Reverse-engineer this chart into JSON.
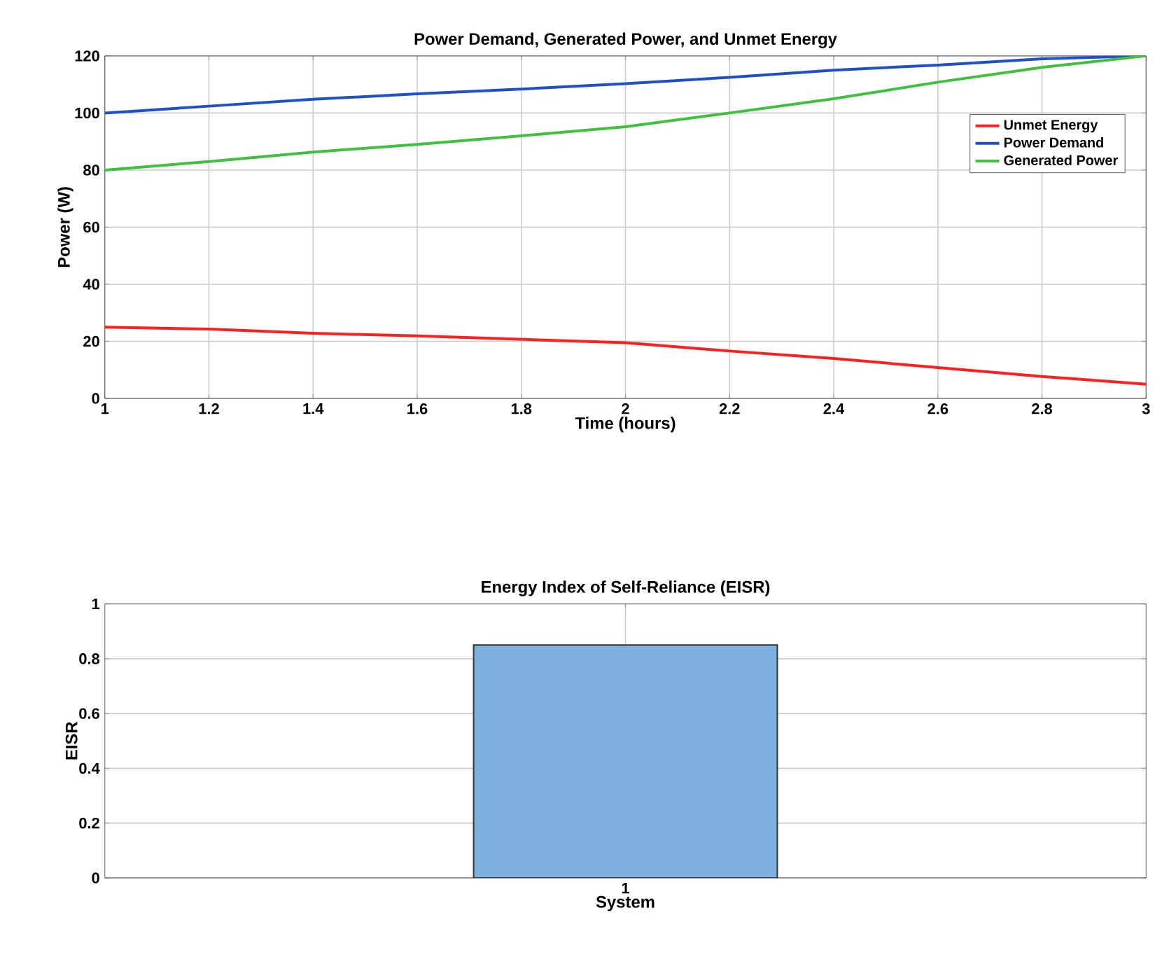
{
  "chart_data": [
    {
      "type": "line",
      "title": "Power Demand, Generated Power, and Unmet Energy",
      "xlabel": "Time (hours)",
      "ylabel": "Power (W)",
      "x": [
        1,
        1.2,
        1.4,
        1.6,
        1.8,
        2,
        2.2,
        2.4,
        2.6,
        2.8,
        3
      ],
      "series": [
        {
          "name": "Unmet Energy",
          "color": "#ff2020",
          "values": [
            25,
            24.3,
            22.8,
            21.9,
            20.7,
            19.5,
            16.6,
            14,
            10.8,
            7.7,
            5
          ]
        },
        {
          "name": "Power Demand",
          "color": "#2050c8",
          "values": [
            100,
            102.4,
            104.8,
            106.7,
            108.4,
            110.3,
            112.5,
            115,
            116.8,
            119,
            120
          ]
        },
        {
          "name": "Generated Power",
          "color": "#40c040",
          "values": [
            80,
            83,
            86.3,
            89,
            92,
            95.2,
            100,
            105,
            110.8,
            116,
            120
          ]
        }
      ],
      "xlim": [
        1,
        3
      ],
      "xticks": [
        1,
        1.2,
        1.4,
        1.6,
        1.8,
        2,
        2.2,
        2.4,
        2.6,
        2.8,
        3
      ],
      "ylim": [
        0,
        120
      ],
      "yticks": [
        0,
        20,
        40,
        60,
        80,
        100,
        120
      ],
      "grid": true,
      "legend": "top right",
      "marker": "none",
      "line_style": "solid"
    },
    {
      "type": "bar",
      "title": "Energy Index of Self-Reliance (EISR)",
      "xlabel": "System",
      "ylabel": "EISR",
      "categories": [
        "1"
      ],
      "values": [
        0.85
      ],
      "color": "#7eb0e0",
      "ylim": [
        0,
        1
      ],
      "yticks": [
        0,
        0.2,
        0.4,
        0.6,
        0.8,
        1
      ],
      "grid": true
    }
  ]
}
